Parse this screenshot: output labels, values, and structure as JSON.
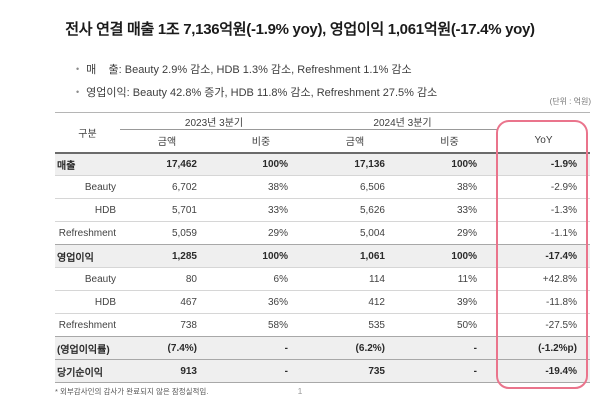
{
  "title": "전사 연결 매출 1조 7,136억원(-1.9% yoy), 영업이익 1,061억원(-17.4% yoy)",
  "bullets": [
    "매    출: Beauty 2.9% 감소, HDB 1.3% 감소, Refreshment 1.1% 감소",
    "영업이익: Beauty 42.8% 증가, HDB 11.8% 감소, Refreshment 27.5% 감소"
  ],
  "unit_note": "(단위 : 억원)",
  "table": {
    "header": {
      "gubun": "구분",
      "y2023": "2023년 3분기",
      "y2024": "2024년 3분기",
      "yoy": "YoY"
    },
    "sub_headers": [
      "금액",
      "비중",
      "금액",
      "비중"
    ],
    "rows": [
      {
        "label": "매출",
        "style": "shaded",
        "indent": false,
        "values": [
          "17,462",
          "100%",
          "17,136",
          "100%",
          "-1.9%"
        ]
      },
      {
        "label": "Beauty",
        "style": "plain",
        "indent": true,
        "values": [
          "6,702",
          "38%",
          "6,506",
          "38%",
          "-2.9%"
        ]
      },
      {
        "label": "HDB",
        "style": "plain",
        "indent": true,
        "values": [
          "5,701",
          "33%",
          "5,626",
          "33%",
          "-1.3%"
        ]
      },
      {
        "label": "Refreshment",
        "style": "plain",
        "indent": true,
        "values": [
          "5,059",
          "29%",
          "5,004",
          "29%",
          "-1.1%"
        ]
      },
      {
        "label": "영업이익",
        "style": "shaded",
        "indent": false,
        "values": [
          "1,285",
          "100%",
          "1,061",
          "100%",
          "-17.4%"
        ]
      },
      {
        "label": "Beauty",
        "style": "plain",
        "indent": true,
        "values": [
          "80",
          "6%",
          "114",
          "11%",
          "+42.8%"
        ]
      },
      {
        "label": "HDB",
        "style": "plain",
        "indent": true,
        "values": [
          "467",
          "36%",
          "412",
          "39%",
          "-11.8%"
        ]
      },
      {
        "label": "Refreshment",
        "style": "plain",
        "indent": true,
        "values": [
          "738",
          "58%",
          "535",
          "50%",
          "-27.5%"
        ]
      },
      {
        "label": "(영업이익률)",
        "style": "shaded",
        "indent": false,
        "values": [
          "(7.4%)",
          "-",
          "(6.2%)",
          "-",
          "(-1.2%p)"
        ]
      },
      {
        "label": "당기순이익",
        "style": "shaded",
        "indent": false,
        "values": [
          "913",
          "-",
          "735",
          "-",
          "-19.4%"
        ]
      }
    ]
  },
  "footnote": "* 외부감사인의 감사가 완료되지 않은 잠정실적임.",
  "page_number": "1",
  "colors": {
    "highlight_border": "#ea748c",
    "row_shade": "#efefef"
  }
}
